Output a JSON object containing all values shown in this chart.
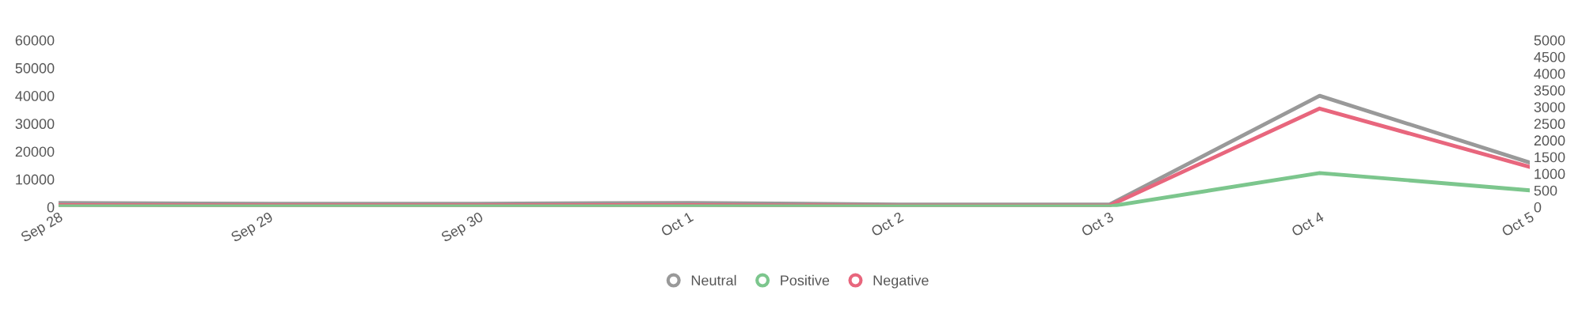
{
  "chart_data": {
    "type": "line",
    "categories": [
      "Sep 28",
      "Sep 29",
      "Sep 30",
      "Oct 1",
      "Oct 2",
      "Oct 3",
      "Oct 4",
      "Oct 5"
    ],
    "series": [
      {
        "name": "Neutral",
        "color": "#999999",
        "values": [
          1500,
          1200,
          1200,
          1500,
          900,
          900,
          40000,
          16000
        ]
      },
      {
        "name": "Positive",
        "color": "#7cc68d",
        "axis": "y2",
        "values": [
          20,
          20,
          20,
          20,
          20,
          20,
          1020,
          500
        ]
      },
      {
        "name": "Negative",
        "color": "#e8667d",
        "axis": "y2",
        "values": [
          60,
          50,
          50,
          60,
          40,
          40,
          2950,
          1200
        ]
      }
    ],
    "ylim": [
      0,
      60000
    ],
    "yticks": [
      0,
      10000,
      20000,
      30000,
      40000,
      50000,
      60000
    ],
    "y2lim": [
      0,
      5000
    ],
    "y2ticks": [
      0,
      500,
      1000,
      1500,
      2000,
      2500,
      3000,
      3500,
      4000,
      4500,
      5000
    ],
    "grid": false,
    "legend": "bottom",
    "marker": "none",
    "line_style": "solid"
  }
}
